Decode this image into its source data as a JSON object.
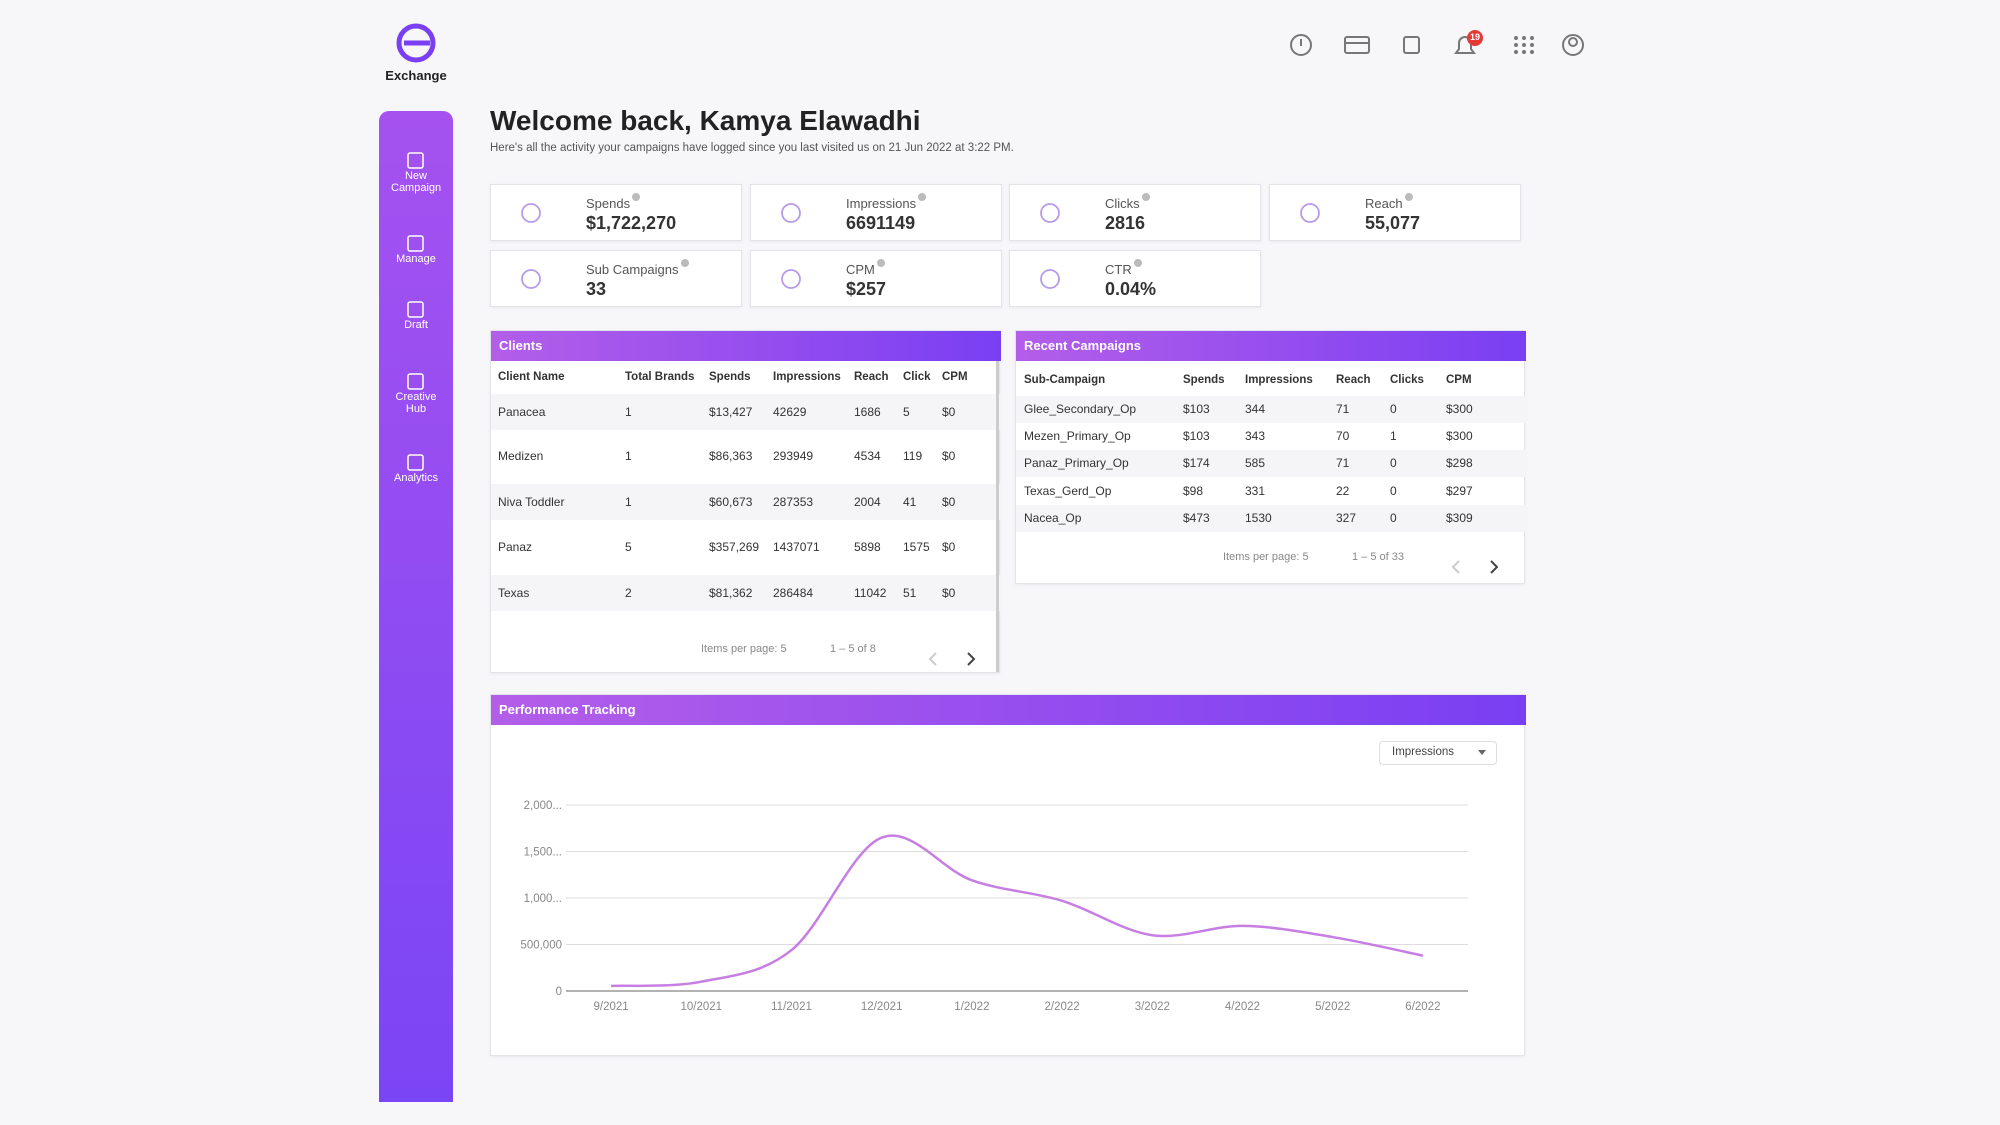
{
  "brand": "Exchange",
  "notifications": 19,
  "nav": [
    "New Campaign",
    "Manage",
    "Draft",
    "Creative Hub",
    "Analytics"
  ],
  "header": {
    "title": "Welcome back, Kamya Elawadhi",
    "subtitle": "Here's all the activity your campaigns have logged since you last visited us on 21 Jun 2022 at 3:22 PM."
  },
  "stats": [
    {
      "label": "Spends",
      "value": "$1,722,270"
    },
    {
      "label": "Impressions",
      "value": "6691149"
    },
    {
      "label": "Clicks",
      "value": "2816"
    },
    {
      "label": "Reach",
      "value": "55,077"
    },
    {
      "label": "Sub Campaigns",
      "value": "33"
    },
    {
      "label": "CPM",
      "value": "$257"
    },
    {
      "label": "CTR",
      "value": "0.04%"
    }
  ],
  "clients": {
    "title": "Clients",
    "columns": [
      "Client Name",
      "Total Brands",
      "Spends",
      "Impressions",
      "Reach",
      "Click",
      "CPM"
    ],
    "rows": [
      [
        "Panacea",
        "1",
        "$13,427",
        "42629",
        "1686",
        "5",
        "$0"
      ],
      [
        "Medizen",
        "1",
        "$86,363",
        "293949",
        "4534",
        "119",
        "$0"
      ],
      [
        "Niva Toddler",
        "1",
        "$60,673",
        "287353",
        "2004",
        "41",
        "$0"
      ],
      [
        "Panaz",
        "5",
        "$357,269",
        "1437071",
        "5898",
        "1575",
        "$0"
      ],
      [
        "Texas",
        "2",
        "$81,362",
        "286484",
        "11042",
        "51",
        "$0"
      ]
    ],
    "pagination": {
      "items_per_page": "Items per page: 5",
      "range": "1 – 5 of 8"
    }
  },
  "recent_campaigns": {
    "title": "Recent Campaigns",
    "columns": [
      "Sub-Campaign",
      "Spends",
      "Impressions",
      "Reach",
      "Clicks",
      "CPM"
    ],
    "rows": [
      [
        "Glee_Secondary_Op",
        "$103",
        "344",
        "71",
        "0",
        "$300"
      ],
      [
        "Mezen_Primary_Op",
        "$103",
        "343",
        "70",
        "1",
        "$300"
      ],
      [
        "Panaz_Primary_Op",
        "$174",
        "585",
        "71",
        "0",
        "$298"
      ],
      [
        "Texas_Gerd_Op",
        "$98",
        "331",
        "22",
        "0",
        "$297"
      ],
      [
        "Nacea_Op",
        "$473",
        "1530",
        "327",
        "0",
        "$309"
      ]
    ],
    "pagination": {
      "items_per_page": "Items per page: 5",
      "range": "1 – 5 of 33"
    }
  },
  "performance": {
    "title": "Performance Tracking",
    "metric": "Impressions"
  },
  "chart_data": {
    "type": "line",
    "categories": [
      "9/2021",
      "10/2021",
      "11/2021",
      "12/2021",
      "1/2022",
      "2/2022",
      "3/2022",
      "4/2022",
      "5/2022",
      "6/2022"
    ],
    "values": [
      55000,
      100000,
      440000,
      1650000,
      1190000,
      970000,
      600000,
      700000,
      580000,
      380000
    ],
    "color": "#c77ee2",
    "ylim": [
      0,
      2000000
    ],
    "yticks": [
      0,
      {
        "value": 500000,
        "label": "500,000"
      },
      {
        "value": 1000000,
        "label": "1,000..."
      },
      {
        "value": 1500000,
        "label": "1,500..."
      },
      {
        "value": 2000000,
        "label": "2,000..."
      }
    ],
    "grid": true
  }
}
